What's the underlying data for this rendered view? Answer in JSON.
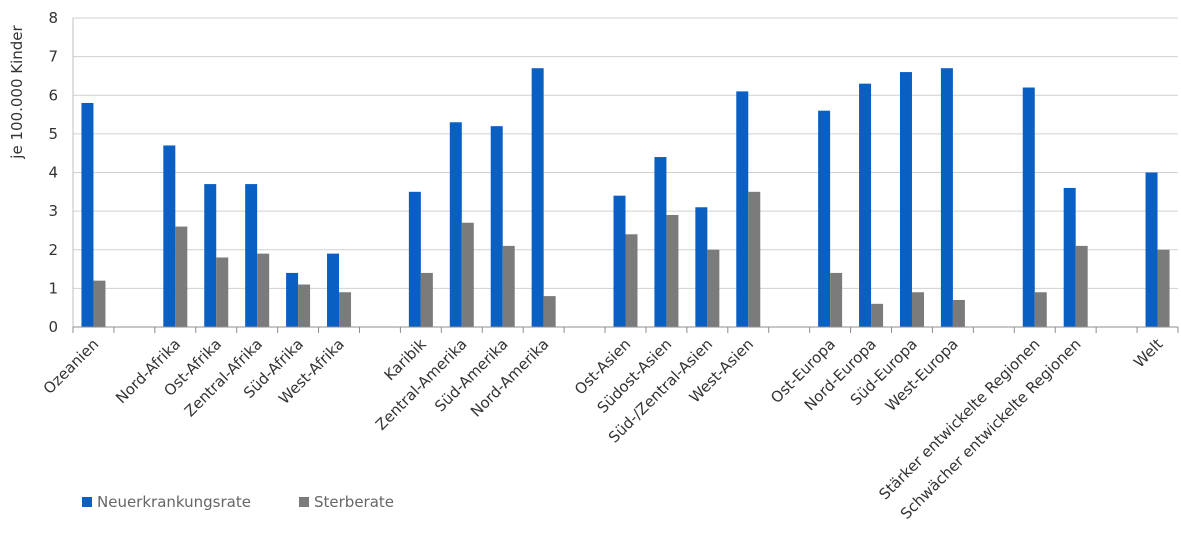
{
  "chart_data": {
    "type": "bar",
    "ylabel": "je 100.000 Kinder",
    "ylim": [
      0,
      8
    ],
    "yticks": [
      "0",
      "1",
      "2",
      "3",
      "4",
      "5",
      "6",
      "7",
      "8"
    ],
    "grid": true,
    "legend_position": "bottom-left",
    "categories": [
      "Ozeanien",
      "",
      "Nord-Afrika",
      "Ost-Afrika",
      "Zentral-Afrika",
      "Süd-Afrika",
      "West-Afrika",
      "",
      "Karibik",
      "Zentral-Amerika",
      "Süd-Amerika",
      "Nord-Amerika",
      "",
      "Ost-Asien",
      "Südost-Asien",
      "Süd-/Zentral-Asien",
      "West-Asien",
      "",
      "Ost-Europa",
      "Nord-Europa",
      "Süd-Europa",
      "West-Europa",
      "",
      "Stärker entwickelte Regionen",
      "Schwächer entwickelte Regionen",
      "",
      "Welt"
    ],
    "series": [
      {
        "name": "Neuerkrankungsrate",
        "color": "#0a5fc2",
        "values": [
          5.8,
          null,
          4.7,
          3.7,
          3.7,
          1.4,
          1.9,
          null,
          3.5,
          5.3,
          5.2,
          6.7,
          null,
          3.4,
          4.4,
          3.1,
          6.1,
          null,
          5.6,
          6.3,
          6.6,
          6.7,
          null,
          6.2,
          3.6,
          null,
          4.0
        ]
      },
      {
        "name": "Sterberate",
        "color": "#7b7b7b",
        "values": [
          1.2,
          null,
          2.6,
          1.8,
          1.9,
          1.1,
          0.9,
          null,
          1.4,
          2.7,
          2.1,
          0.8,
          null,
          2.4,
          2.9,
          2.0,
          3.5,
          null,
          1.4,
          0.6,
          0.9,
          0.7,
          null,
          0.9,
          2.1,
          null,
          2.0
        ]
      }
    ]
  }
}
